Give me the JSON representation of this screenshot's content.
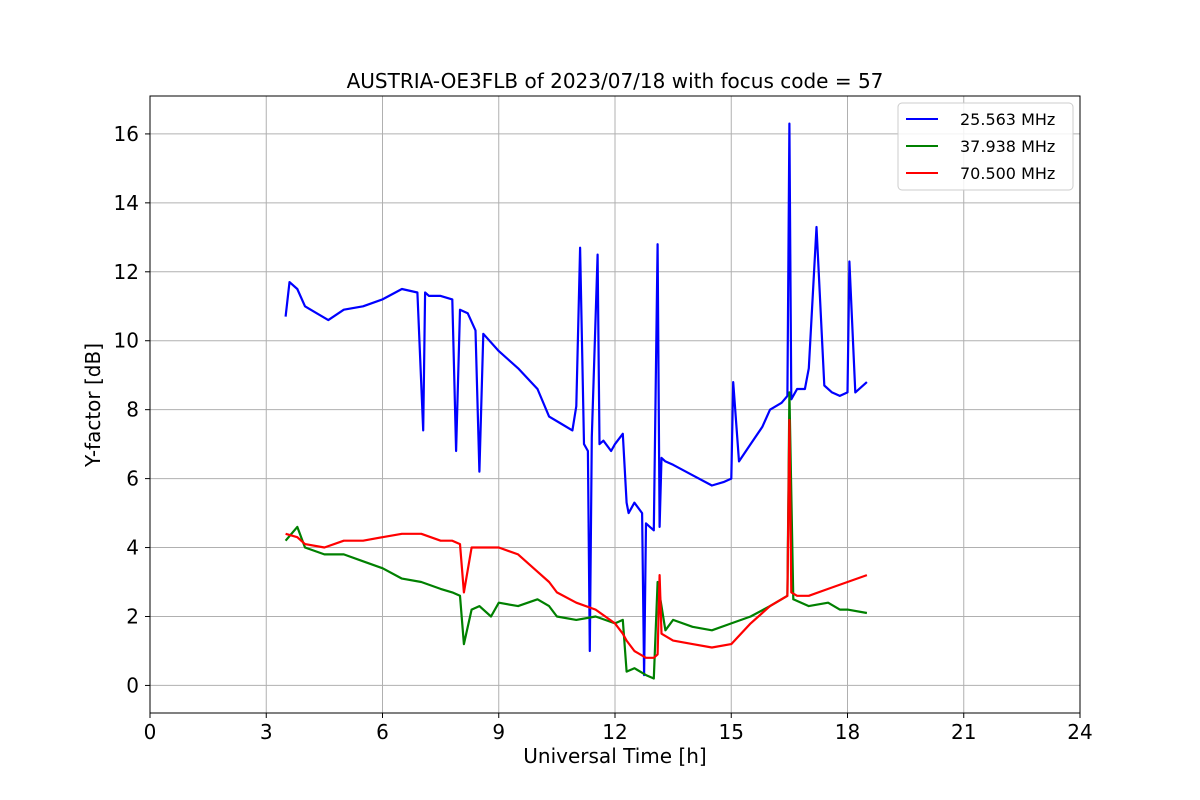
{
  "chart_data": {
    "type": "line",
    "title": "AUSTRIA-OE3FLB of 2023/07/18 with focus code = 57",
    "xlabel": "Universal Time [h]",
    "ylabel": "Y-factor [dB]",
    "xlim": [
      0,
      24
    ],
    "ylim": [
      -0.8,
      17.1
    ],
    "xticks": [
      0,
      3,
      6,
      9,
      12,
      15,
      18,
      21,
      24
    ],
    "yticks": [
      0,
      2,
      4,
      6,
      8,
      10,
      12,
      14,
      16
    ],
    "grid": true,
    "legend_position": "top-right",
    "series": [
      {
        "name": "25.563 MHz",
        "color": "#0000ff",
        "x": [
          3.5,
          3.6,
          3.8,
          4.0,
          4.3,
          4.6,
          5.0,
          5.5,
          6.0,
          6.5,
          6.9,
          7.05,
          7.1,
          7.2,
          7.5,
          7.8,
          7.9,
          8.0,
          8.2,
          8.4,
          8.5,
          8.6,
          9.0,
          9.5,
          10.0,
          10.3,
          10.6,
          10.9,
          11.0,
          11.1,
          11.2,
          11.3,
          11.35,
          11.4,
          11.55,
          11.6,
          11.7,
          11.9,
          12.0,
          12.2,
          12.3,
          12.35,
          12.5,
          12.7,
          12.75,
          12.8,
          12.9,
          13.0,
          13.1,
          13.15,
          13.2,
          13.3,
          13.5,
          14.0,
          14.5,
          14.8,
          15.0,
          15.05,
          15.2,
          15.5,
          15.8,
          16.0,
          16.3,
          16.45,
          16.5,
          16.55,
          16.7,
          16.9,
          17.0,
          17.2,
          17.4,
          17.6,
          17.8,
          18.0,
          18.05,
          18.2,
          18.5
        ],
        "y": [
          10.7,
          11.7,
          11.5,
          11.0,
          10.8,
          10.6,
          10.9,
          11.0,
          11.2,
          11.5,
          11.4,
          7.4,
          11.4,
          11.3,
          11.3,
          11.2,
          6.8,
          10.9,
          10.8,
          10.3,
          6.2,
          10.2,
          9.7,
          9.2,
          8.6,
          7.8,
          7.6,
          7.4,
          8.1,
          12.7,
          7.0,
          6.8,
          1.0,
          7.2,
          12.5,
          7.0,
          7.1,
          6.8,
          7.0,
          7.3,
          5.3,
          5.0,
          5.3,
          5.0,
          0.3,
          4.7,
          4.6,
          4.5,
          12.8,
          4.6,
          6.6,
          6.5,
          6.4,
          6.1,
          5.8,
          5.9,
          6.0,
          8.8,
          6.5,
          7.0,
          7.5,
          8.0,
          8.2,
          8.4,
          16.3,
          8.3,
          8.6,
          8.6,
          9.2,
          13.3,
          8.7,
          8.5,
          8.4,
          8.5,
          12.3,
          8.5,
          8.8
        ]
      },
      {
        "name": "37.938 MHz",
        "color": "#008000",
        "x": [
          3.5,
          3.8,
          4.0,
          4.5,
          5.0,
          5.5,
          6.0,
          6.5,
          7.0,
          7.5,
          7.8,
          8.0,
          8.1,
          8.3,
          8.5,
          8.8,
          9.0,
          9.5,
          10.0,
          10.3,
          10.5,
          11.0,
          11.5,
          12.0,
          12.2,
          12.3,
          12.5,
          12.8,
          13.0,
          13.1,
          13.3,
          13.5,
          14.0,
          14.5,
          15.0,
          15.5,
          16.0,
          16.45,
          16.5,
          16.6,
          17.0,
          17.5,
          17.8,
          18.0,
          18.5
        ],
        "y": [
          4.2,
          4.6,
          4.0,
          3.8,
          3.8,
          3.6,
          3.4,
          3.1,
          3.0,
          2.8,
          2.7,
          2.6,
          1.2,
          2.2,
          2.3,
          2.0,
          2.4,
          2.3,
          2.5,
          2.3,
          2.0,
          1.9,
          2.0,
          1.8,
          1.9,
          0.4,
          0.5,
          0.3,
          0.2,
          3.0,
          1.6,
          1.9,
          1.7,
          1.6,
          1.8,
          2.0,
          2.3,
          2.6,
          8.5,
          2.5,
          2.3,
          2.4,
          2.2,
          2.2,
          2.1
        ]
      },
      {
        "name": "70.500 MHz",
        "color": "#ff0000",
        "x": [
          3.5,
          3.8,
          4.0,
          4.5,
          5.0,
          5.5,
          6.0,
          6.5,
          7.0,
          7.5,
          7.8,
          8.0,
          8.1,
          8.3,
          8.5,
          9.0,
          9.5,
          10.0,
          10.3,
          10.5,
          11.0,
          11.5,
          12.0,
          12.2,
          12.3,
          12.5,
          12.8,
          13.0,
          13.1,
          13.15,
          13.2,
          13.5,
          14.0,
          14.5,
          15.0,
          15.5,
          16.0,
          16.45,
          16.5,
          16.55,
          16.7,
          17.0,
          17.5,
          18.0,
          18.5
        ],
        "y": [
          4.4,
          4.3,
          4.1,
          4.0,
          4.2,
          4.2,
          4.3,
          4.4,
          4.4,
          4.2,
          4.2,
          4.1,
          2.7,
          4.0,
          4.0,
          4.0,
          3.8,
          3.3,
          3.0,
          2.7,
          2.4,
          2.2,
          1.8,
          1.5,
          1.3,
          1.0,
          0.8,
          0.8,
          0.9,
          3.2,
          1.5,
          1.3,
          1.2,
          1.1,
          1.2,
          1.8,
          2.3,
          2.6,
          7.7,
          2.7,
          2.6,
          2.6,
          2.8,
          3.0,
          3.2
        ]
      }
    ]
  }
}
